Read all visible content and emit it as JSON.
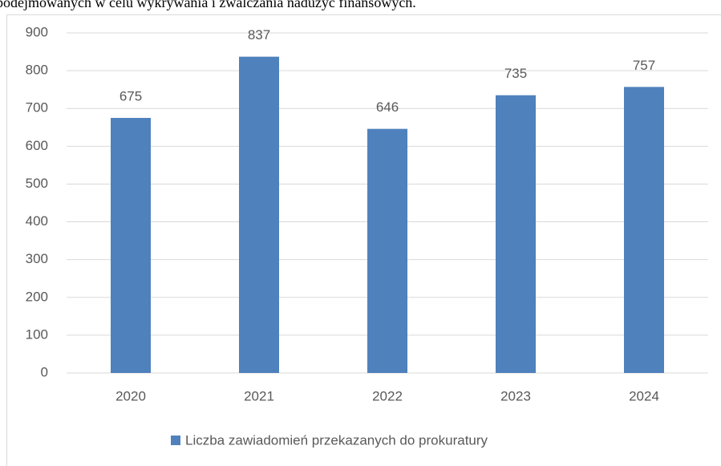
{
  "caption": "podejmowanych w celu wykrywania i zwalczania nadużyć finansowych.",
  "chart_data": {
    "type": "bar",
    "categories": [
      "2020",
      "2021",
      "2022",
      "2023",
      "2024"
    ],
    "series": [
      {
        "name": "Liczba zawiadomień przekazanych do prokuratury",
        "color": "#4f81bd",
        "values": [
          675,
          837,
          646,
          735,
          757
        ]
      }
    ],
    "ylim": [
      0,
      900
    ],
    "yticks": [
      0,
      100,
      200,
      300,
      400,
      500,
      600,
      700,
      800,
      900
    ],
    "grid": true,
    "legend": "bottom"
  }
}
